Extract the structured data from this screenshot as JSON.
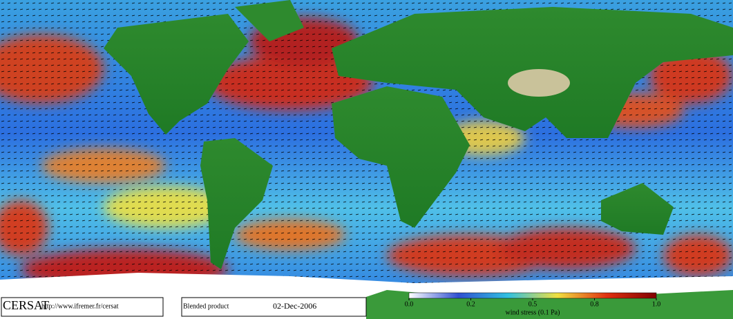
{
  "footer": {
    "logo": "CERSAT",
    "url": "http://www.ifremer.fr/cersat",
    "product": "Blended product",
    "date": "02-Dec-2006"
  },
  "colorbar": {
    "label": "wind stress (0.1 Pa)",
    "ticks": [
      {
        "value": 0,
        "label": "0.0"
      },
      0.2,
      0.5,
      0.8,
      {
        "value": 1,
        "label": "1.0"
      }
    ],
    "colors": [
      "#ffffff",
      "#3050d0",
      "#30c0e0",
      "#f0e040",
      "#e03010",
      "#800000"
    ]
  }
}
